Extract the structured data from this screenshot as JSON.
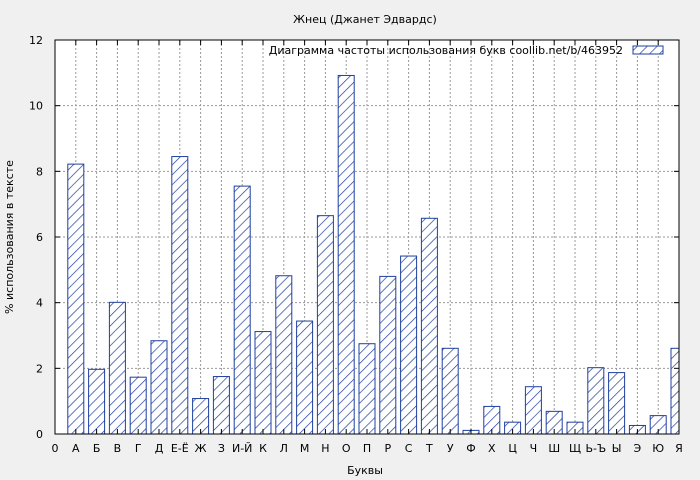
{
  "chart_data": {
    "type": "bar",
    "title": "Жнец (Джанет Эдвардс)",
    "xlabel": "Буквы",
    "ylabel": "% использования в тексте",
    "ylim": [
      0,
      12
    ],
    "yticks": [
      0,
      2,
      4,
      6,
      8,
      10,
      12
    ],
    "grid": true,
    "legend_position": "top-right",
    "series": [
      {
        "name": "Диаграмма частоты использования букв  coollib.net/b/463952",
        "color": "#1f3f9f",
        "pattern": "diagonal-hatch"
      }
    ],
    "x_ticks": [
      "0",
      "А",
      "Б",
      "В",
      "Г",
      "Д",
      "Е-Ё",
      "Ж",
      "З",
      "И-Й",
      "К",
      "Л",
      "М",
      "Н",
      "О",
      "П",
      "Р",
      "С",
      "Т",
      "У",
      "Ф",
      "Х",
      "Ц",
      "Ч",
      "Ш",
      "Щ",
      "Ь-Ъ",
      "Ы",
      "Э",
      "Ю",
      "Я"
    ],
    "categories": [
      "А",
      "Б",
      "В",
      "Г",
      "Д",
      "Е-Ё",
      "Ж",
      "З",
      "И-Й",
      "К",
      "Л",
      "М",
      "Н",
      "О",
      "П",
      "Р",
      "С",
      "Т",
      "У",
      "Ф",
      "Х",
      "Ц",
      "Ч",
      "Ш",
      "Щ",
      "Ь-Ъ",
      "Ы",
      "Э",
      "Ю",
      "Я"
    ],
    "values": [
      8.22,
      1.97,
      4.01,
      1.73,
      2.84,
      8.45,
      1.08,
      1.75,
      7.55,
      3.12,
      4.82,
      3.44,
      6.65,
      10.92,
      2.75,
      4.8,
      5.42,
      6.57,
      2.61,
      0.11,
      0.84,
      0.36,
      1.44,
      0.69,
      0.36,
      2.02,
      1.87,
      0.26,
      0.56,
      2.61
    ]
  }
}
